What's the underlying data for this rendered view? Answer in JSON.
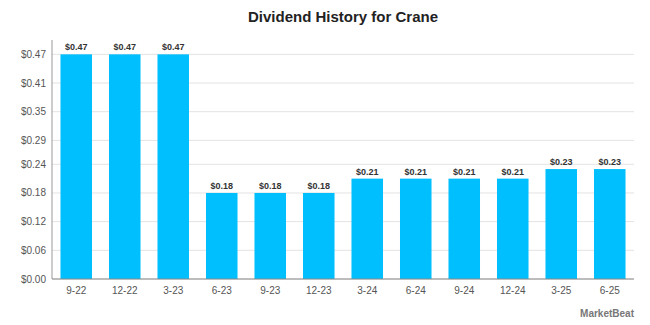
{
  "chart_data": {
    "type": "bar",
    "title": "Dividend History for Crane",
    "categories": [
      "9-22",
      "12-22",
      "3-23",
      "6-23",
      "9-23",
      "12-23",
      "3-24",
      "6-24",
      "9-24",
      "12-24",
      "3-25",
      "6-25"
    ],
    "values": [
      0.47,
      0.47,
      0.47,
      0.18,
      0.18,
      0.18,
      0.21,
      0.21,
      0.21,
      0.21,
      0.23,
      0.23
    ],
    "value_labels": [
      "$0.47",
      "$0.47",
      "$0.47",
      "$0.18",
      "$0.18",
      "$0.18",
      "$0.21",
      "$0.21",
      "$0.21",
      "$0.21",
      "$0.23",
      "$0.23"
    ],
    "data_labels": true,
    "color": "#00BFFF",
    "ylim": [
      0,
      0.5
    ],
    "yticks": [
      {
        "value": 0.0,
        "label": "$0.00"
      },
      {
        "value": 0.06,
        "label": "$0.06"
      },
      {
        "value": 0.12,
        "label": "$0.12"
      },
      {
        "value": 0.18,
        "label": "$0.18"
      },
      {
        "value": 0.24,
        "label": "$0.24"
      },
      {
        "value": 0.29,
        "label": "$0.29"
      },
      {
        "value": 0.35,
        "label": "$0.35"
      },
      {
        "value": 0.41,
        "label": "$0.41"
      },
      {
        "value": 0.47,
        "label": "$0.47"
      }
    ],
    "grid": true,
    "annotations": [
      "MarketBeat"
    ]
  }
}
